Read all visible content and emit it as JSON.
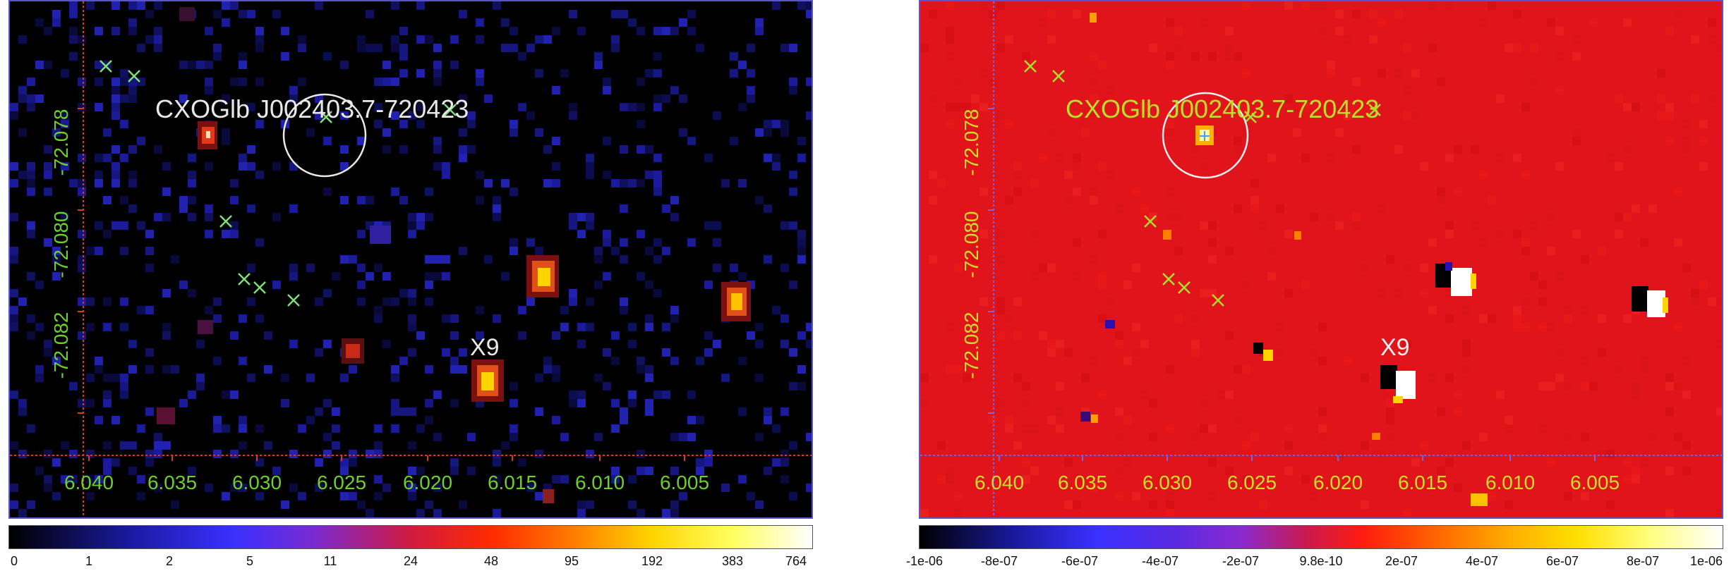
{
  "left_panel": {
    "source_label": "CXOGlb J002403.7-720423",
    "x9_label": "X9",
    "ra_ticks": [
      "6.040",
      "6.035",
      "6.030",
      "6.025",
      "6.020",
      "6.015",
      "6.010",
      "6.005"
    ],
    "dec_ticks": [
      "-72.078",
      "-72.080",
      "-72.082"
    ],
    "colorbar_ticks": [
      "0",
      "1",
      "2",
      "5",
      "11",
      "24",
      "48",
      "95",
      "192",
      "383",
      "764"
    ],
    "colors": {
      "background": "#000000",
      "grid": "#d23a2a",
      "axis_text": "#6bd02a",
      "label": "#e8e8e8",
      "marker": "#7fe07a"
    }
  },
  "right_panel": {
    "source_label": "CXOGlb J002403.7-720423",
    "x9_label": "X9",
    "ra_ticks": [
      "6.040",
      "6.035",
      "6.030",
      "6.025",
      "6.020",
      "6.015",
      "6.010",
      "6.005"
    ],
    "dec_ticks": [
      "-72.078",
      "-72.080",
      "-72.082"
    ],
    "colorbar_ticks": [
      "-1e-06",
      "-8e-07",
      "-6e-07",
      "-4e-07",
      "-2e-07",
      "9.8e-10",
      "2e-07",
      "4e-07",
      "6e-07",
      "8e-07",
      "1e-06"
    ],
    "colors": {
      "background": "#e2141b",
      "grid": "#7a62d8",
      "axis_text": "#c8e02a",
      "label": "#b8e02a",
      "marker": "#a8e02a"
    }
  }
}
